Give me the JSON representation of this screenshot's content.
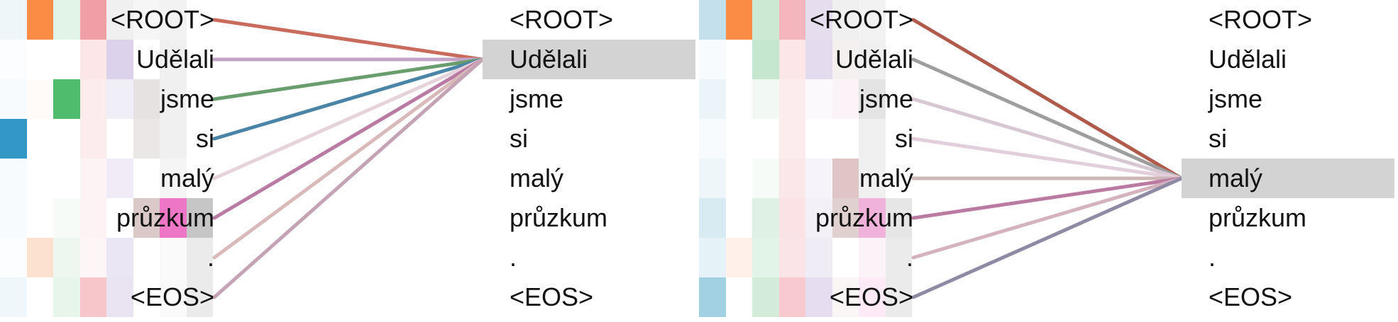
{
  "panels": [
    {
      "left_tokens": [
        "<ROOT>",
        "Udělali",
        "jsme",
        "si",
        "malý",
        "průzkum",
        ".",
        "<EOS>"
      ],
      "right_tokens": [
        "<ROOT>",
        "Udělali",
        "jsme",
        "si",
        "malý",
        "průzkum",
        ".",
        "<EOS>"
      ],
      "highlight_index": 1,
      "heatmap": [
        [
          "#eef6f9",
          "#fb8c45",
          "#e2f3e7",
          "#f19fa6",
          "#f0f0f0",
          "#f6f6f6",
          "#f2f2f2",
          "#ffffff"
        ],
        [
          "#fbfdfe",
          "#ffffff",
          "#ffffff",
          "#fce6e8",
          "#ddd2ec",
          "#ffffff",
          "#f0f0f0",
          "#ffffff"
        ],
        [
          "#f7fbfd",
          "#fffbf8",
          "#4ebb6d",
          "#fcecee",
          "#f0eef6",
          "#e7e2e2",
          "#f0f0f0",
          "#ffffff"
        ],
        [
          "#3498c7",
          "#ffffff",
          "#ffffff",
          "#fcecee",
          "#ffffff",
          "#ece7e7",
          "#f0f0f0",
          "#ffffff"
        ],
        [
          "#f7fbfd",
          "#ffffff",
          "#ffffff",
          "#fdf3f4",
          "#f0ebf6",
          "#ffffff",
          "#f5f5f5",
          "#ffffff"
        ],
        [
          "#f7fbfd",
          "#ffffff",
          "#f6fbf7",
          "#fdf3f4",
          "#ffffff",
          "#dbc9c9",
          "#ee76c6",
          "#c6c6c6"
        ],
        [
          "#fbfdfe",
          "#fde1d0",
          "#edf7f0",
          "#fdf5f6",
          "#ebe6f3",
          "#ffffff",
          "#fafafa",
          "#ebebeb"
        ],
        [
          "#eff7fa",
          "#ffffff",
          "#e8f5eb",
          "#f7c6cb",
          "#eae4f2",
          "#ffffff",
          "#fafafa",
          "#ebebeb"
        ]
      ],
      "links": [
        {
          "from": 0,
          "color": "#c86a5c"
        },
        {
          "from": 1,
          "color": "#c3a3c9"
        },
        {
          "from": 2,
          "color": "#6a9d6e"
        },
        {
          "from": 3,
          "color": "#4a85a8"
        },
        {
          "from": 4,
          "color": "#e6d2da"
        },
        {
          "from": 5,
          "color": "#b97aa3"
        },
        {
          "from": 6,
          "color": "#d9b9b9"
        },
        {
          "from": 7,
          "color": "#c4a4b4"
        }
      ]
    },
    {
      "left_tokens": [
        "<ROOT>",
        "Udělali",
        "jsme",
        "si",
        "malý",
        "průzkum",
        ".",
        "<EOS>"
      ],
      "right_tokens": [
        "<ROOT>",
        "Udělali",
        "jsme",
        "si",
        "malý",
        "průzkum",
        ".",
        "<EOS>"
      ],
      "highlight_index": 4,
      "heatmap": [
        [
          "#c3e0ec",
          "#fb8c45",
          "#cbe9d3",
          "#f4b6bc",
          "#e6ddee",
          "#f0f0f0",
          "#f2f2f2",
          "#ffffff"
        ],
        [
          "#f7fbfd",
          "#ffffff",
          "#c5e7cf",
          "#fce6e8",
          "#e4dbef",
          "#f5f0f0",
          "#f0f0f0",
          "#ffffff"
        ],
        [
          "#eaf4f9",
          "#ffffff",
          "#f2f9f4",
          "#fcecee",
          "#fbf9fc",
          "#fbf3f8",
          "#e4e4e4",
          "#ffffff"
        ],
        [
          "#f7fbfd",
          "#ffffff",
          "#ffffff",
          "#fcecee",
          "#ffffff",
          "#ffffff",
          "#f0f0f0",
          "#ffffff"
        ],
        [
          "#eef6f9",
          "#ffffff",
          "#f7fbf8",
          "#fbe7e9",
          "#f6f3fa",
          "#dfc5c5",
          "#f0f0f0",
          "#ffffff"
        ],
        [
          "#d8ebf3",
          "#ffffff",
          "#dff1e4",
          "#fbe2e5",
          "#f3f0f8",
          "#e1d0d0",
          "#f0b2da",
          "#e6e6e6"
        ],
        [
          "#e5f2f7",
          "#fff1e9",
          "#e2f3e7",
          "#fbe4e7",
          "#f0ecf6",
          "#ffffff",
          "#fbf3f8",
          "#ebebeb"
        ],
        [
          "#a2d1e4",
          "#ffffff",
          "#d2ecd9",
          "#f8c9ce",
          "#e6def0",
          "#fbf6f6",
          "#fdeaf6",
          "#ebebeb"
        ]
      ],
      "links": [
        {
          "from": 0,
          "color": "#b05a4c"
        },
        {
          "from": 1,
          "color": "#9e9e9e"
        },
        {
          "from": 2,
          "color": "#d7c7d3"
        },
        {
          "from": 3,
          "color": "#e2cfdb"
        },
        {
          "from": 4,
          "color": "#cdb6b6"
        },
        {
          "from": 5,
          "color": "#bb7aa2"
        },
        {
          "from": 6,
          "color": "#d4b3bf"
        },
        {
          "from": 7,
          "color": "#8e8aa6"
        }
      ]
    }
  ]
}
